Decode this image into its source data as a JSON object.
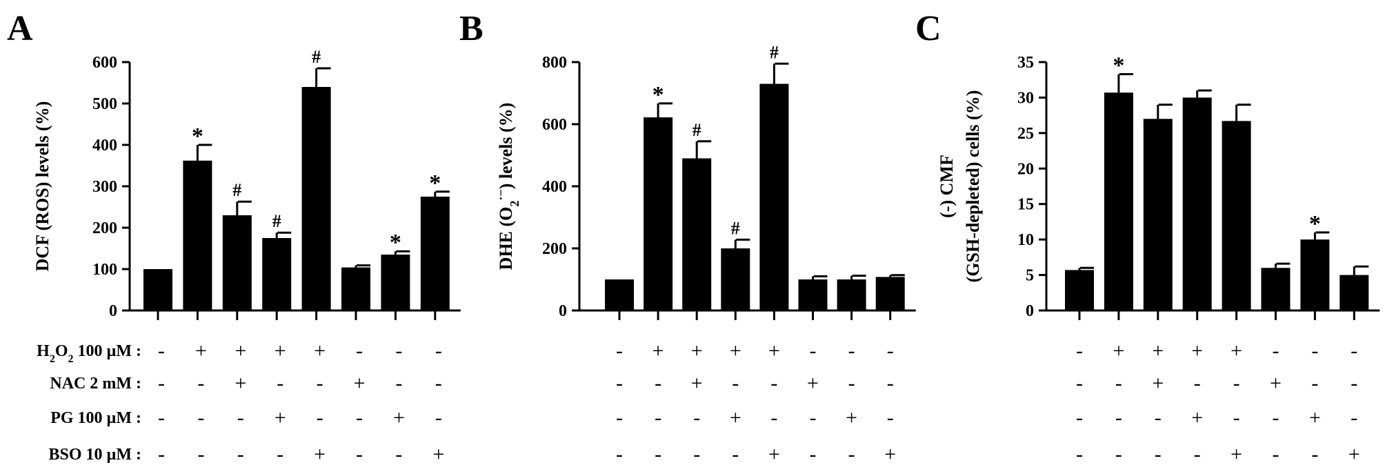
{
  "conditions": {
    "row_labels": [
      "H2O2 100 µM :",
      "NAC 2 mM :",
      "PG 100 µM :",
      "BSO 10 µM :"
    ],
    "rows": [
      [
        "-",
        "+",
        "+",
        "+",
        "+",
        "-",
        "-",
        "-"
      ],
      [
        "-",
        "-",
        "+",
        "-",
        "-",
        "+",
        "-",
        "-"
      ],
      [
        "-",
        "-",
        "-",
        "+",
        "-",
        "-",
        "+",
        "-"
      ],
      [
        "-",
        "-",
        "-",
        "-",
        "+",
        "-",
        "-",
        "+"
      ]
    ]
  },
  "chart_data": [
    {
      "type": "bar",
      "panel": "A",
      "ylabel": "DCF (ROS) levels (%)",
      "ylim": [
        0,
        600
      ],
      "yticks": [
        0,
        100,
        200,
        300,
        400,
        500,
        600
      ],
      "categories": [
        "1",
        "2",
        "3",
        "4",
        "5",
        "6",
        "7",
        "8"
      ],
      "values": [
        100,
        362,
        230,
        175,
        540,
        104,
        135,
        275
      ],
      "errors": [
        0,
        38,
        33,
        13,
        45,
        5,
        8,
        12
      ],
      "annotations": [
        "",
        "*",
        "#",
        "#",
        "#",
        "",
        "*",
        "*"
      ]
    },
    {
      "type": "bar",
      "panel": "B",
      "ylabel": "DHE (O2·−) levels (%)",
      "ylim": [
        0,
        800
      ],
      "yticks": [
        0,
        200,
        400,
        600,
        800
      ],
      "categories": [
        "1",
        "2",
        "3",
        "4",
        "5",
        "6",
        "7",
        "8"
      ],
      "values": [
        100,
        622,
        490,
        200,
        730,
        100,
        100,
        108
      ],
      "errors": [
        0,
        45,
        55,
        28,
        65,
        10,
        12,
        6
      ],
      "annotations": [
        "",
        "*",
        "#",
        "#",
        "#",
        "",
        "",
        ""
      ]
    },
    {
      "type": "bar",
      "panel": "C",
      "ylabel": "(-) CMF (GSH-depleted) cells (%)",
      "ylim": [
        0,
        35
      ],
      "yticks": [
        0,
        5,
        10,
        15,
        20,
        25,
        30,
        35
      ],
      "categories": [
        "1",
        "2",
        "3",
        "4",
        "5",
        "6",
        "7",
        "8"
      ],
      "values": [
        5.7,
        30.7,
        27.0,
        30.0,
        26.7,
        6.0,
        10.0,
        5.0
      ],
      "errors": [
        0.3,
        2.6,
        2.0,
        1.0,
        2.3,
        0.6,
        1.0,
        1.2
      ],
      "annotations": [
        "",
        "*",
        "",
        "",
        "",
        "",
        "*",
        ""
      ]
    }
  ]
}
